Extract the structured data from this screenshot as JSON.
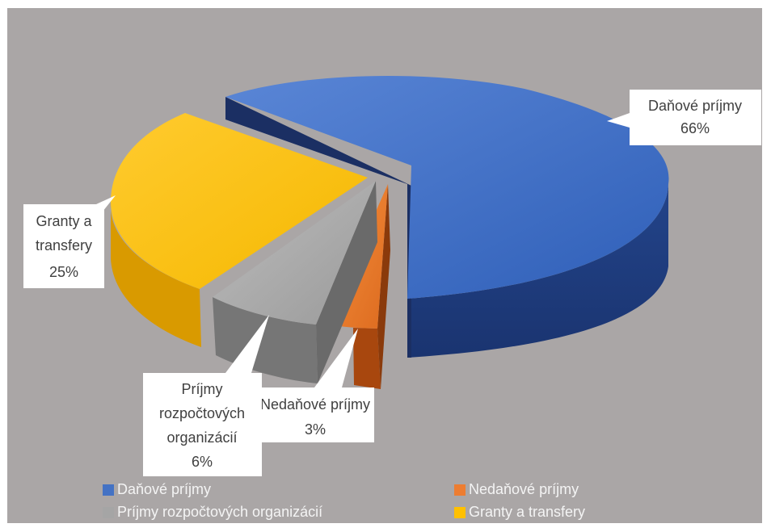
{
  "chart_data": {
    "type": "pie",
    "title": "",
    "categories": [
      "Daňové príjmy",
      "Nedaňové príjmy",
      "Príjmy rozpočtových organizácií",
      "Granty a transfery"
    ],
    "values": [
      66,
      3,
      6,
      25
    ],
    "data_labels": {
      "dane_name": "Daňové príjmy",
      "dane_pct": "66%",
      "nedane_name": "Nedaňové príjmy",
      "nedane_pct": "3%",
      "org_line1": "Príjmy",
      "org_line2": "rozpočtových",
      "org_line3": "organizácií",
      "org_pct": "6%",
      "granty_line1": "Granty a",
      "granty_line2": "transfery",
      "granty_pct": "25%"
    },
    "colors": [
      "#4472c4",
      "#ed7d31",
      "#a5a5a5",
      "#ffc000"
    ],
    "legend": {
      "placement": "bottom",
      "entries": [
        "Daňové príjmy",
        "Nedaňové príjmy",
        "Príjmy rozpočtových organizácií",
        "Granty a transfery"
      ]
    },
    "style": "3d-exploded"
  }
}
